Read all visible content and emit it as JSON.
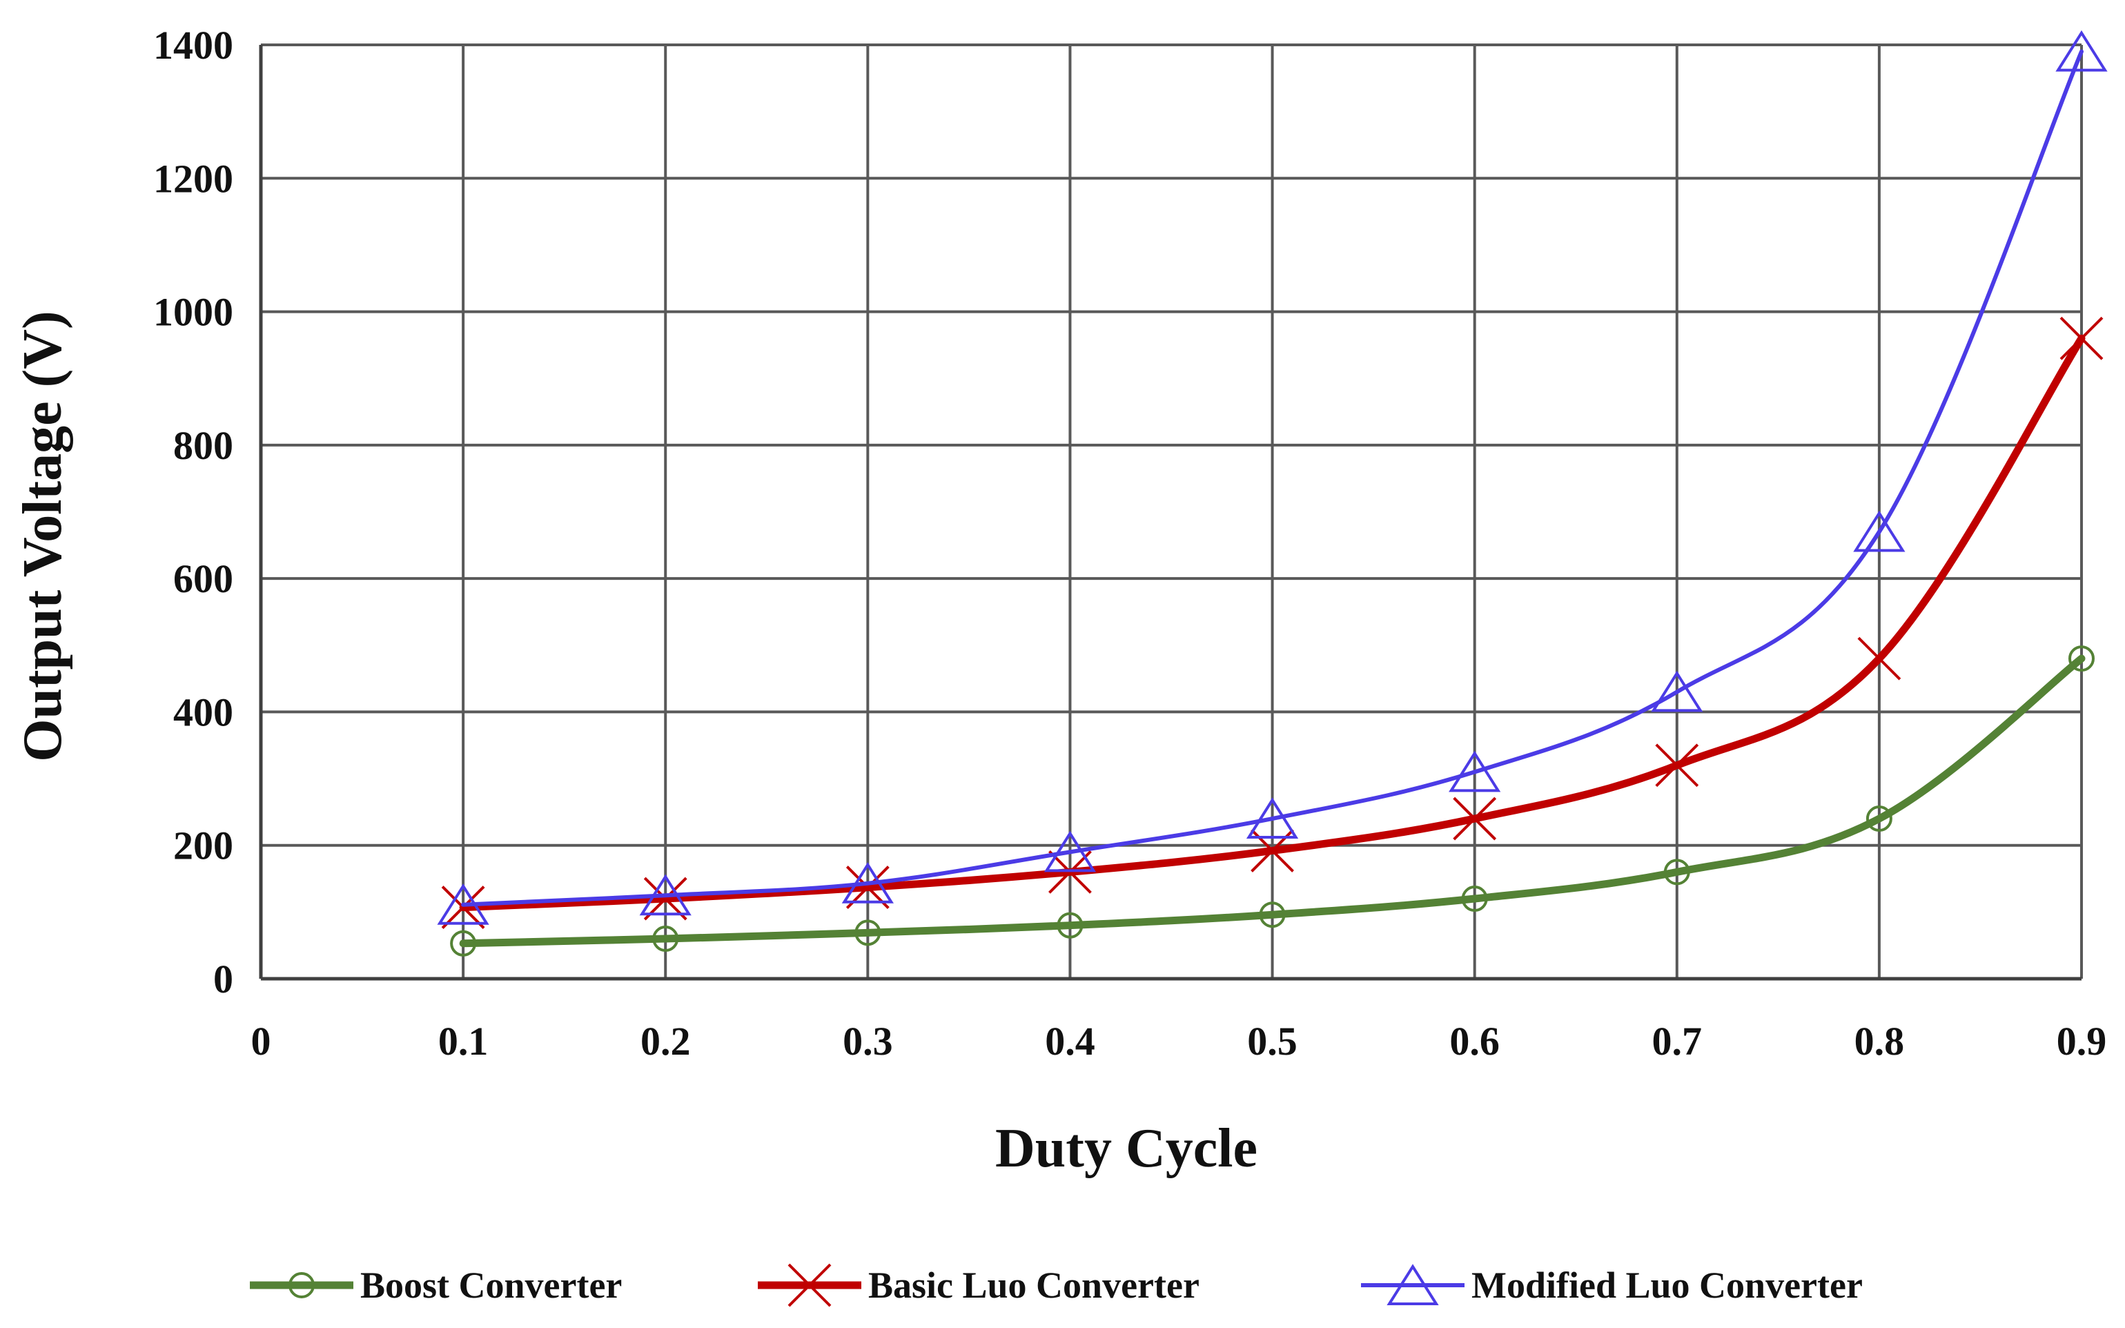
{
  "chart_data": {
    "type": "line",
    "title": "",
    "xlabel": "Duty Cycle",
    "ylabel": "Output Voltage (V)",
    "xlim": [
      0,
      0.9
    ],
    "ylim": [
      0,
      1400
    ],
    "x_ticks": [
      0,
      0.1,
      0.2,
      0.3,
      0.4,
      0.5,
      0.6,
      0.7,
      0.8,
      0.9
    ],
    "x_tick_labels": [
      "0",
      "0.1",
      "0.2",
      "0.3",
      "0.4",
      "0.5",
      "0.6",
      "0.7",
      "0.8",
      "0.9"
    ],
    "y_ticks": [
      0,
      200,
      400,
      600,
      800,
      1000,
      1200,
      1400
    ],
    "y_tick_labels": [
      "0",
      "200",
      "400",
      "600",
      "800",
      "1000",
      "1200",
      "1400"
    ],
    "grid": true,
    "legend_position": "bottom",
    "x": [
      0.1,
      0.2,
      0.3,
      0.4,
      0.5,
      0.6,
      0.7,
      0.8,
      0.9
    ],
    "series": [
      {
        "name": "Boost Converter",
        "color": "#548235",
        "marker": "circle",
        "values": [
          53,
          60,
          69,
          80,
          96,
          120,
          160,
          240,
          480
        ]
      },
      {
        "name": "Basic Luo Converter",
        "color": "#c00000",
        "marker": "x",
        "values": [
          107,
          120,
          137,
          160,
          192,
          240,
          320,
          480,
          960
        ]
      },
      {
        "name": "Modified Luo Converter",
        "color": "#4b3be6",
        "marker": "triangle",
        "values": [
          111,
          125,
          143,
          190,
          240,
          310,
          430,
          670,
          1390
        ]
      }
    ]
  }
}
